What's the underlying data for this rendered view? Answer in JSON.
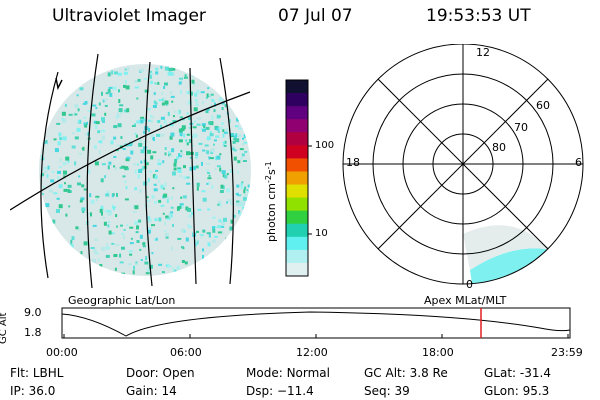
{
  "header": {
    "title": "Ultraviolet Imager",
    "date": "07 Jul 07",
    "time": "19:53:53 UT"
  },
  "colorbar": {
    "label_unit": "photon cm",
    "label_exp1": "-2",
    "label_s": "s",
    "label_exp2": "-1",
    "ticks": [
      "100",
      "10"
    ],
    "colors": [
      "#101030",
      "#300060",
      "#600080",
      "#900070",
      "#b00040",
      "#d00020",
      "#f05000",
      "#f0a000",
      "#e0e000",
      "#90e000",
      "#30d040",
      "#20d0b0",
      "#60f0f0",
      "#b0f0f0",
      "#e0f0f0"
    ]
  },
  "polar": {
    "mlt_labels": {
      "top": "12",
      "left": "18",
      "right": "6",
      "bottom": "0"
    },
    "lat_labels": [
      "60",
      "70",
      "80"
    ]
  },
  "timeline": {
    "left_label": "Geographic Lat/Lon",
    "right_label": "Apex MLat/MLT",
    "y_axis_label": "GC Alt",
    "y_ticks": [
      "9.0",
      "1.8"
    ],
    "x_ticks": [
      "00:00",
      "06:00",
      "12:00",
      "18:00",
      "23:59"
    ],
    "marker_color": "#e02020"
  },
  "meta": {
    "row1": [
      {
        "key": "Flt:",
        "val": "LBHL"
      },
      {
        "key": "Door:",
        "val": "Open"
      },
      {
        "key": "Mode:",
        "val": "Normal"
      },
      {
        "key": "GC Alt:",
        "val": "3.8 Re"
      },
      {
        "key": "GLat:",
        "val": "-31.4"
      }
    ],
    "row2": [
      {
        "key": "IP:",
        "val": "36.0"
      },
      {
        "key": "Gain:",
        "val": "14"
      },
      {
        "key": "Dsp:",
        "val": "−11.4"
      },
      {
        "key": "Seq:",
        "val": "39"
      },
      {
        "key": "GLon:",
        "val": "95.3"
      }
    ]
  }
}
